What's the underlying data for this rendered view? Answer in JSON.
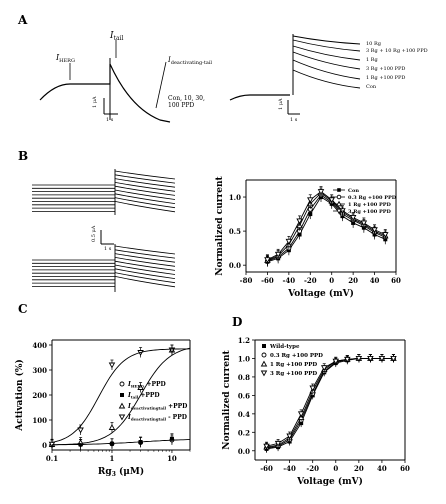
{
  "panels": {
    "A": "A",
    "B": "B",
    "C": "C",
    "D": "D"
  },
  "panelA": {
    "left_labels": {
      "ihERG": "I",
      "ihERG_sub": "HERG",
      "itail": "I",
      "itail_sub": "tail",
      "iinact": "I",
      "iinact_sub": "deactivating-tail",
      "note_line1": "Con, 10, 30,",
      "note_line2": "100 PPD",
      "scale_y": "1 μA",
      "scale_x": "1 s"
    },
    "right_labels": {
      "scale_y": "1 μA",
      "scale_x": "1 s",
      "traces": [
        "10 Rg",
        "3 Rg + 10 Rg +100 PPD",
        "1 Rg",
        "3 Rg +100 PPD",
        "1 Rg +100 PPD",
        "Con"
      ]
    }
  },
  "panelB": {
    "scale_y": "0.5 μA",
    "scale_x": "1 s"
  },
  "chart_data": [
    {
      "id": "B",
      "type": "line",
      "xlabel": "Voltage (mV)",
      "ylabel": "Normalized current",
      "xlim": [
        -80,
        60
      ],
      "ylim": [
        -0.1,
        1.25
      ],
      "xticks": [
        "-80",
        "-60",
        "-40",
        "-20",
        "0",
        "20",
        "40",
        "60"
      ],
      "yticks": [
        "0.0",
        "0.5",
        "1.0"
      ],
      "x": [
        -60,
        -50,
        -40,
        -30,
        -20,
        -10,
        0,
        10,
        20,
        30,
        40,
        50
      ],
      "series": [
        {
          "name": "Con",
          "marker": "square",
          "values": [
            0.05,
            0.1,
            0.22,
            0.45,
            0.75,
            1.0,
            0.9,
            0.72,
            0.62,
            0.55,
            0.45,
            0.38
          ]
        },
        {
          "name": "0.3 Rg +100 PPD",
          "marker": "circle",
          "values": [
            0.06,
            0.12,
            0.25,
            0.5,
            0.82,
            1.03,
            0.92,
            0.75,
            0.66,
            0.58,
            0.48,
            0.41
          ]
        },
        {
          "name": "1 Rg +100 PPD",
          "marker": "triangle",
          "values": [
            0.07,
            0.14,
            0.3,
            0.58,
            0.9,
            1.06,
            0.94,
            0.78,
            0.68,
            0.6,
            0.5,
            0.43
          ]
        },
        {
          "name": "3 Rg +100 PPD",
          "marker": "tridown",
          "values": [
            0.08,
            0.16,
            0.35,
            0.65,
            0.96,
            1.08,
            0.96,
            0.8,
            0.7,
            0.62,
            0.52,
            0.45
          ]
        }
      ]
    },
    {
      "id": "C",
      "type": "scatter",
      "xlabel": "Rg",
      "xlabel_sub": "3",
      "xlabel_unit": " (μM)",
      "ylabel": "Activation (%)",
      "xscale": "log",
      "xlim": [
        0.1,
        20
      ],
      "ylim": [
        -20,
        420
      ],
      "xticks": [
        "0.1",
        "1",
        "10"
      ],
      "yticks": [
        "0",
        "100",
        "200",
        "300",
        "400"
      ],
      "x": [
        0.1,
        0.3,
        1,
        3,
        10
      ],
      "series": [
        {
          "name": "I",
          "name_sub": "HERG",
          "name_suffix": " +PPD",
          "marker": "circle",
          "values": [
            0,
            2,
            5,
            10,
            20
          ]
        },
        {
          "name": "I",
          "name_sub": "tail",
          "name_suffix": " +PPD",
          "marker": "square",
          "values": [
            0,
            2,
            5,
            12,
            25
          ]
        },
        {
          "name": "I",
          "name_sub": "deactivatingtail",
          "name_suffix": " +PPD",
          "marker": "triangle",
          "values": [
            2,
            10,
            70,
            230,
            380
          ]
        },
        {
          "name": "I",
          "name_sub": "deactivatingtail",
          "name_suffix": " - PPD",
          "marker": "tridown",
          "values": [
            3,
            60,
            320,
            370,
            380
          ]
        }
      ]
    },
    {
      "id": "D",
      "type": "line",
      "xlabel": "Voltage (mV)",
      "ylabel": "Normalized current",
      "xlim": [
        -70,
        60
      ],
      "ylim": [
        -0.1,
        1.2
      ],
      "xticks": [
        "-60",
        "-40",
        "-20",
        "0",
        "20",
        "40",
        "60"
      ],
      "yticks": [
        "0.0",
        "0.2",
        "0.4",
        "0.6",
        "0.8",
        "1.0",
        "1.2"
      ],
      "x": [
        -60,
        -50,
        -40,
        -30,
        -20,
        -10,
        0,
        10,
        20,
        30,
        40,
        50
      ],
      "series": [
        {
          "name": "Wild-type",
          "marker": "square",
          "values": [
            0.02,
            0.04,
            0.1,
            0.3,
            0.6,
            0.85,
            0.95,
            0.98,
            1.0,
            1.0,
            1.0,
            1.0
          ]
        },
        {
          "name": "0.3 Rg +100 PPD",
          "marker": "circle",
          "values": [
            0.03,
            0.05,
            0.12,
            0.33,
            0.62,
            0.86,
            0.96,
            0.99,
            1.0,
            1.0,
            1.0,
            1.0
          ]
        },
        {
          "name": "1 Rg +100 PPD",
          "marker": "triangle",
          "values": [
            0.04,
            0.06,
            0.14,
            0.36,
            0.65,
            0.88,
            0.97,
            0.99,
            1.0,
            1.0,
            1.0,
            1.0
          ]
        },
        {
          "name": "3 Rg +100 PPD",
          "marker": "tridown",
          "values": [
            0.05,
            0.08,
            0.16,
            0.4,
            0.68,
            0.9,
            0.97,
            0.99,
            1.0,
            1.0,
            1.0,
            1.0
          ]
        }
      ]
    }
  ]
}
